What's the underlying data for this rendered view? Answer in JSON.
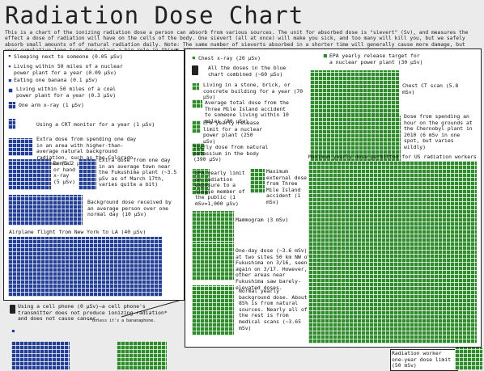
{
  "title": "Radiation Dose Chart",
  "intro": "This is a chart of the ionizing radiation dose a person can absorb from various sources. The unit for absorbed dose is \"sievert\" (Sv), and measures the effect a dose of radiation will have on the cells of the body. One sievert (all at once) will make you sick, and too many will kill you, but we safely absorb small amounts of of natural radiation daily. Note: The same number of sieverts absorbed in a shorter time will generally cause more damage, but your cumulative long-term dose plays a big role in things like cancer risk.",
  "left_panel": {
    "items": [
      {
        "label": "Sleeping next to someone (0.05 μSv)"
      },
      {
        "label": "Living within 50 miles of a nuclear power plant for a year (0.09 μSv)"
      },
      {
        "label": "Eating one banana (0.1 μSv)"
      },
      {
        "label": "Living within 50 miles of a coal power plant for a year (0.3 μSv)"
      },
      {
        "label": "One arm x-ray (1 μSv)"
      },
      {
        "label": "Using a CRT monitor for a year (1 μSv)"
      },
      {
        "label": "Extra dose from spending one day in an area with higher-than-average natural background radiation, such as the Colorado plateau (1.2 μSv)"
      },
      {
        "label": "Dental or hand x-ray (5 μSv)"
      },
      {
        "label": "Extra dose from one day in an average town near the Fukushima plant (~3.5 μSv as of March 17th, varies quite a bit)"
      },
      {
        "label": "Background dose received by an average person over one normal day (10 μSv)"
      },
      {
        "label": "Airplane flight from New York to LA (40 μSv)"
      }
    ],
    "phone_note": "Using a cell phone (0 μSv)—a cell phone's transmitter does not produce ionizing radiation* and does not cause cancer.",
    "footnote": "* Unless it's a bananaphone."
  },
  "right_panel": {
    "items": [
      {
        "label": "Chest x-ray (20 μSv)"
      },
      {
        "label": "All the doses in the blue chart combined (~60 μSv)"
      },
      {
        "label": "EPA yearly release target for a nuclear power plant (30 μSv)"
      },
      {
        "label": "Living in a stone, brick, or concrete building for a year (70 μSv)"
      },
      {
        "label": "Average total dose from the Three Mile Island accident to someone living within 10 miles (80 μSv)"
      },
      {
        "label": "Chest CT scan (5.8 mSv)"
      },
      {
        "label": "EPA yearly release limit for a nuclear power plant (250 μSv)"
      },
      {
        "label": "Dose from spending an hour on the grounds at the Chernobyl plant in 2010 (6 mSv in one spot, but varies wildly)"
      },
      {
        "label": "Yearly dose from natural potassium in the body (390 μSv)"
      },
      {
        "label": "Maximum yearly dose permitted for US radiation workers (50 mSv)"
      },
      {
        "label": "EPA yearly limit on radiation exposure to a single member of the public (1 mSv=1,000 μSv)"
      },
      {
        "label": "Maximum external dose from Three Mile Island accident (1 mSv)"
      },
      {
        "label": "Mammogram (3 mSv)"
      },
      {
        "label": "One-day dose (~3.6 mSv) at two sites 50 km NW of Fukushima on 3/16, seen again on 3/17. However, other areas near Fukushima saw barely-elevated doses."
      },
      {
        "label": "Normal yearly background dose. About 85% is from natural sources. Nearly all of the rest is from medical scans (~3.65 mSv)"
      }
    ]
  },
  "bottom": {
    "note": "Radiation worker one-year dose limit (50 mSv)"
  },
  "colors": {
    "blue": "#233f9c",
    "green": "#2f8c2a",
    "orange": "#e0a030"
  }
}
